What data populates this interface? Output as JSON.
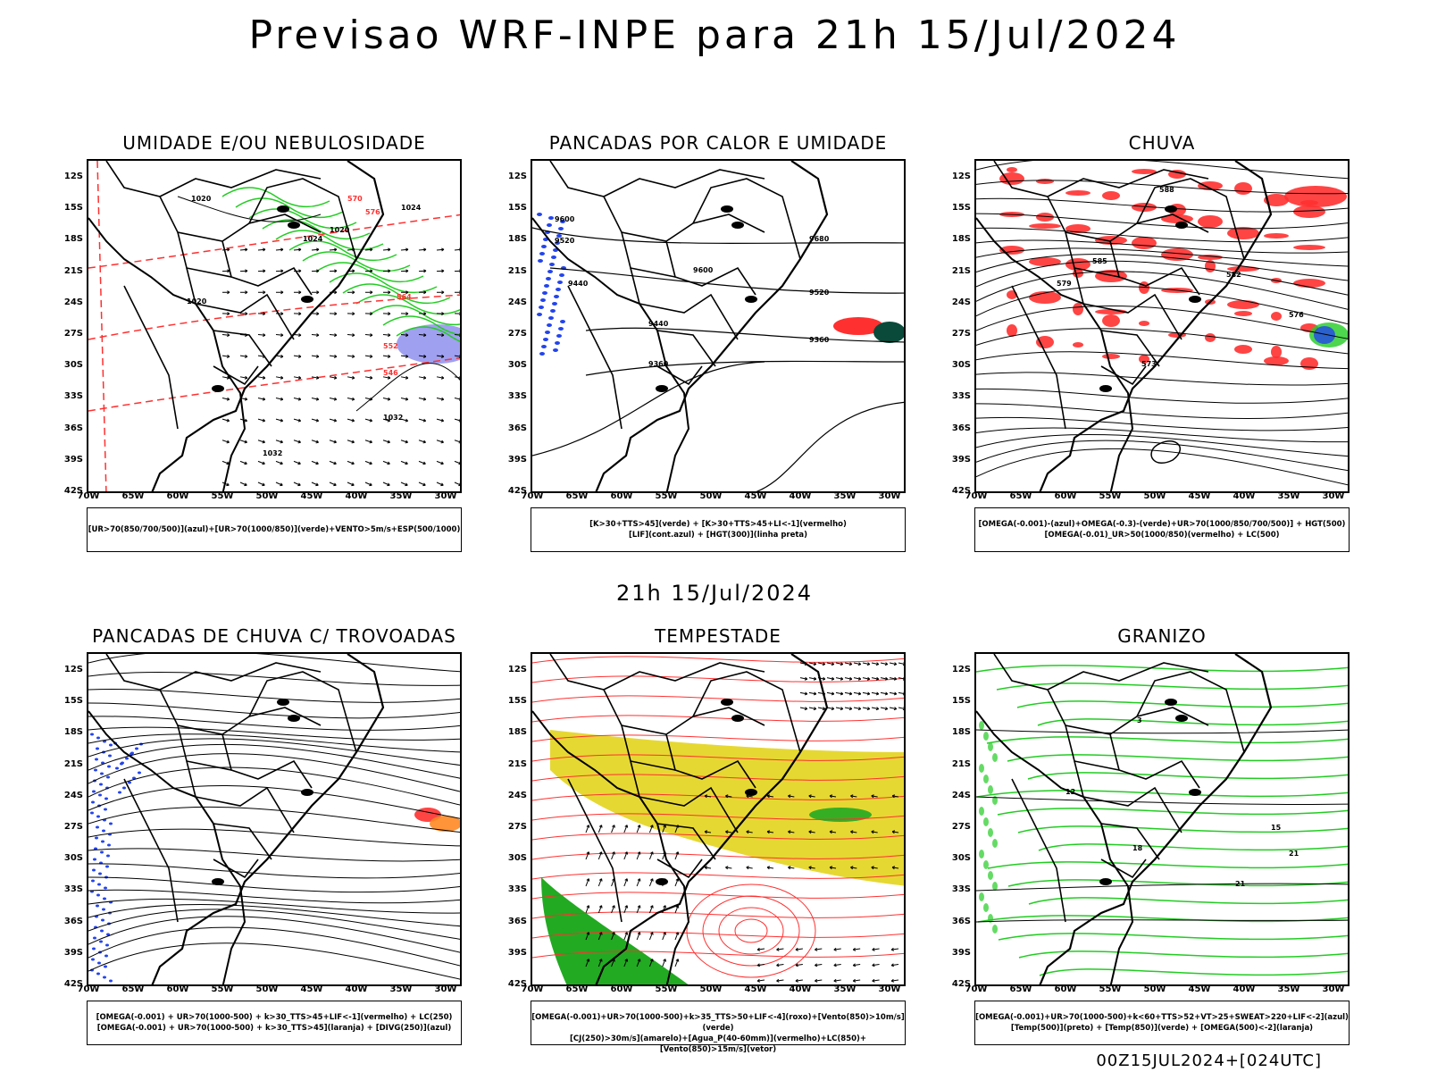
{
  "title": "Previsao WRF-INPE  para 21h 15/Jul/2024",
  "mid_title": "21h 15/Jul/2024",
  "footer": "00Z15JUL2024+[024UTC]",
  "lat_labels": [
    "12S",
    "15S",
    "18S",
    "21S",
    "24S",
    "27S",
    "30S",
    "33S",
    "36S",
    "39S",
    "42S"
  ],
  "lon_labels": [
    "70W",
    "65W",
    "60W",
    "55W",
    "50W",
    "45W",
    "40W",
    "35W",
    "30W"
  ],
  "panels": [
    {
      "title": "UMIDADE E/OU NEBULOSIDADE",
      "legend1": "[UR>70(850/700/500)](azul)+[UR>70(1000/850)](verde)+VENTO>5m/s+ESP(500/1000)",
      "legend2": "",
      "labels": [
        "1020",
        "1020",
        "1020",
        "1024",
        "1024",
        "1032",
        "1032",
        "570",
        "576",
        "564",
        "552",
        "546"
      ]
    },
    {
      "title": "PANCADAS POR CALOR E UMIDADE",
      "legend1": "[K>30+TTS>45](verde) + [K>30+TTS>45+LI<-1](vermelho)",
      "legend2": "[LIF](cont.azul) + [HGT(300)](linha preta)",
      "labels": [
        "9600",
        "9520",
        "9440",
        "9680",
        "9600",
        "9520",
        "9440",
        "9360",
        "9360"
      ]
    },
    {
      "title": "CHUVA",
      "legend1": "[OMEGA(-0.001)-(azul)+OMEGA(-0.3)-(verde)+UR>70(1000/850/700/500)] + HGT(500)",
      "legend2": "[OMEGA(-0.01)_UR>50(1000/850)(vermelho) + LC(500)",
      "labels": [
        "588",
        "585",
        "582",
        "579",
        "576",
        "573"
      ]
    },
    {
      "title": "PANCADAS DE CHUVA C/ TROVOADAS",
      "legend1": "[OMEGA(-0.001) + UR>70(1000-500) + k>30_TTS>45+LIF<-1](vermelho) + LC(250)",
      "legend2": "[OMEGA(-0.001) + UR>70(1000-500) + k>30_TTS>45](laranja) + [DIVG(250)](azul)",
      "labels": []
    },
    {
      "title": "TEMPESTADE",
      "legend1": "[OMEGA(-0.001)+UR>70(1000-500)+k>35_TTS>50+LIF<-4](roxo)+[Vento(850)>10m/s](verde)",
      "legend2": "[CJ(250)>30m/s](amarelo)+[Agua_P(40-60mm)](vermelho)+LC(850)+[Vento(850)>15m/s](vetor)",
      "labels": []
    },
    {
      "title": "GRANIZO",
      "legend1": "[OMEGA(-0.001)+UR>70(1000-500)+k<60+TTS>52+VT>25+SWEAT>220+LIF<-2](azul)",
      "legend2": "[Temp(500)](preto) + [Temp(850)](verde) + [OMEGA(500)<-2](laranja)",
      "labels": [
        "3",
        "12",
        "15",
        "18",
        "21",
        "21"
      ]
    }
  ],
  "colors": {
    "black": "#000000",
    "red": "#ff3030",
    "green": "#22cc22",
    "blue": "#2244ee",
    "yellow": "#e6d832",
    "darkgreen": "#0a4a3a",
    "purple": "#8888ee",
    "orange": "#ff8822"
  }
}
